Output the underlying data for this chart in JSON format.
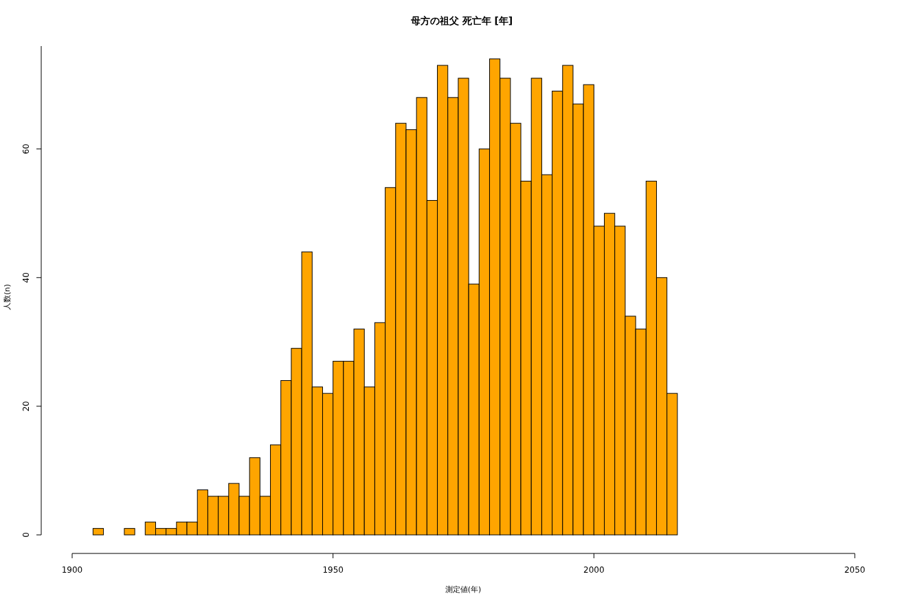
{
  "chart_data": {
    "type": "histogram",
    "title": "母方の祖父 死亡年 [年]",
    "xlabel": "測定値(年)",
    "ylabel": "人数(n)",
    "color": "#ffa500",
    "bins": [
      1904,
      1906,
      1908,
      1910,
      1912,
      1914,
      1916,
      1918,
      1920,
      1922,
      1924,
      1926,
      1928,
      1930,
      1932,
      1934,
      1936,
      1938,
      1940,
      1942,
      1944,
      1946,
      1948,
      1950,
      1952,
      1954,
      1956,
      1958,
      1960,
      1962,
      1964,
      1966,
      1968,
      1970,
      1972,
      1974,
      1976,
      1978,
      1980,
      1982,
      1984,
      1986,
      1988,
      1990,
      1992,
      1994,
      1996,
      1998,
      2000,
      2002,
      2004,
      2006,
      2008,
      2010,
      2012,
      2014,
      2016
    ],
    "values": [
      1,
      0,
      0,
      1,
      0,
      2,
      1,
      1,
      2,
      2,
      7,
      6,
      6,
      8,
      6,
      12,
      6,
      14,
      24,
      29,
      44,
      23,
      22,
      27,
      27,
      32,
      23,
      33,
      54,
      64,
      63,
      68,
      52,
      73,
      68,
      71,
      39,
      60,
      74,
      71,
      64,
      55,
      71,
      56,
      69,
      73,
      67,
      70,
      48,
      50,
      48,
      34,
      32,
      55,
      40,
      22
    ],
    "xlim": [
      1900,
      2050
    ],
    "xticks": [
      1900,
      1950,
      2000,
      2050
    ],
    "ylim": [
      0,
      76
    ],
    "yticks": [
      0,
      20,
      40,
      60
    ]
  }
}
